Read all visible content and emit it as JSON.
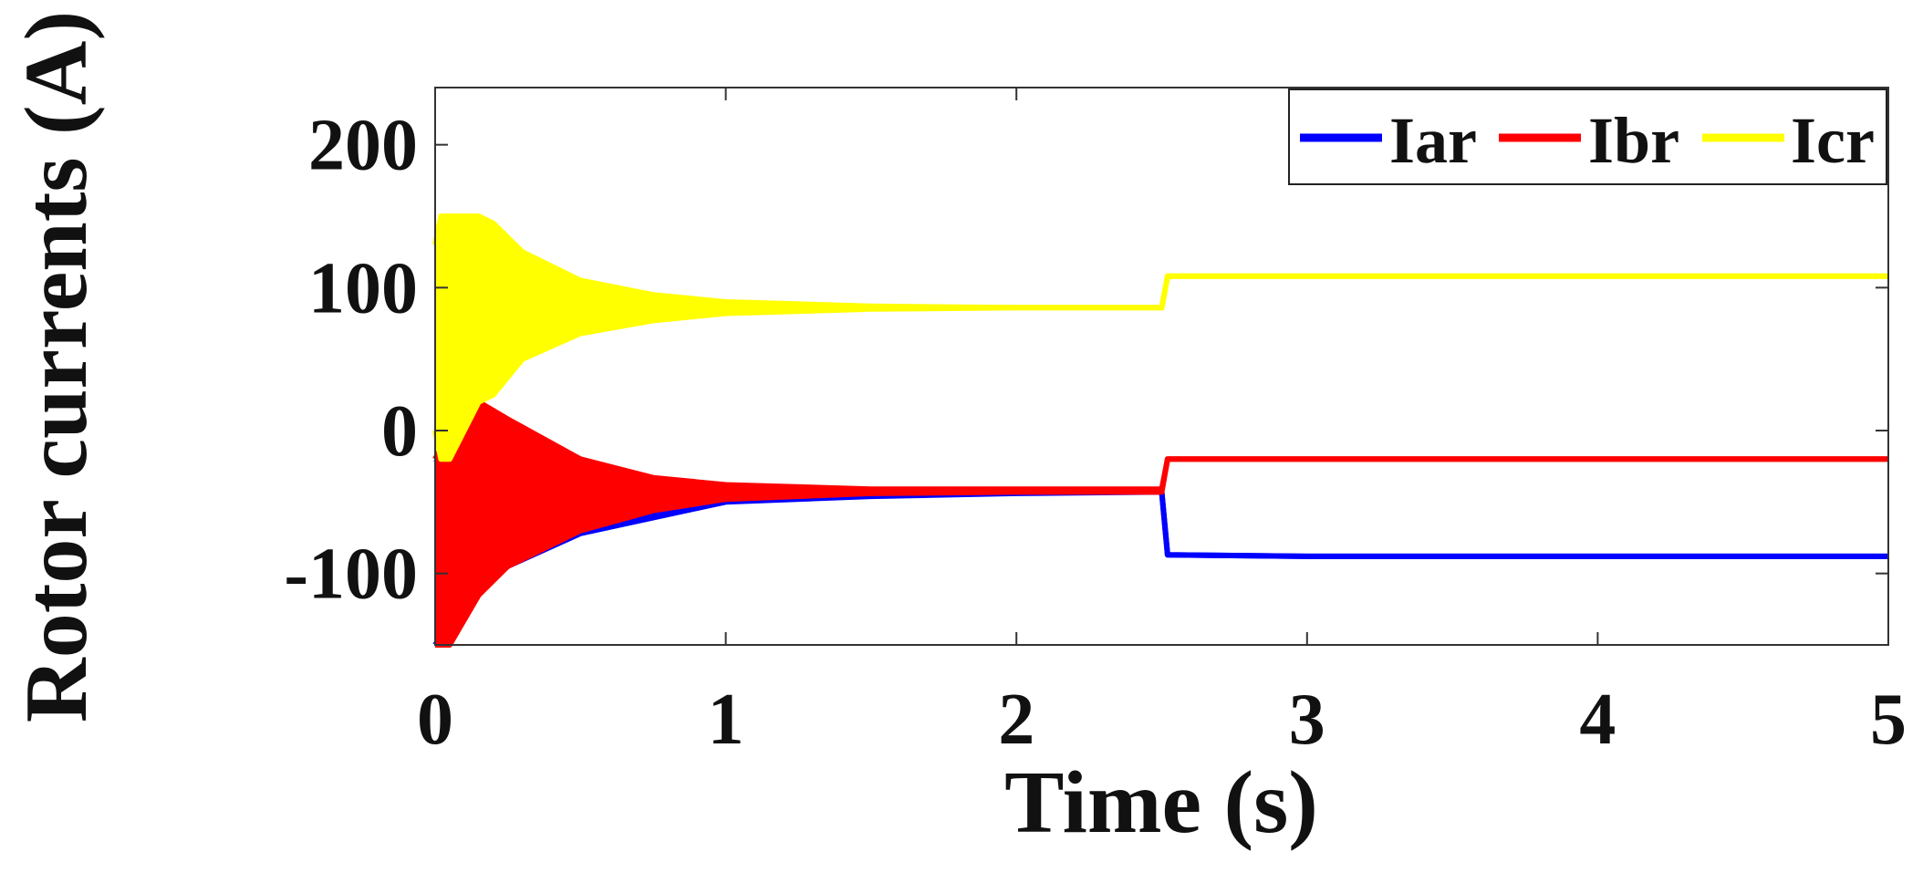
{
  "chart_data": {
    "type": "line",
    "title": "",
    "xlabel": "Time (s)",
    "ylabel": "Rotor currents (A)",
    "xlim": [
      0,
      5
    ],
    "ylim": [
      -150,
      240
    ],
    "xticks": [
      0,
      1,
      2,
      3,
      4,
      5
    ],
    "yticks": [
      -100,
      0,
      100,
      200
    ],
    "xtick_labels": [
      "0",
      "1",
      "2",
      "3",
      "4",
      "5"
    ],
    "ytick_labels": [
      "-100",
      "0",
      "100",
      "200"
    ],
    "grid": false,
    "legend_position": "top-right",
    "legend": [
      "Iar",
      "Ibr",
      "Icr"
    ],
    "series": [
      {
        "name": "Iar",
        "color": "#0000ff",
        "style": "steady-state envelope",
        "x": [
          0,
          0.1,
          0.25,
          0.5,
          1.0,
          1.5,
          2.0,
          2.49,
          2.5,
          2.52,
          3.0,
          4.0,
          5.0
        ],
        "upper": [
          -20,
          -35,
          -40,
          -42,
          -43,
          -43,
          -43,
          -43,
          -43,
          -87,
          -88,
          -88,
          -88
        ],
        "lower": [
          -150,
          -120,
          -95,
          -72,
          -50,
          -46,
          -44,
          -43,
          -43,
          -87,
          -88,
          -88,
          -88
        ]
      },
      {
        "name": "Ibr",
        "color": "#ff0000",
        "style": "oscillating envelope",
        "x": [
          0,
          0.05,
          0.15,
          0.25,
          0.5,
          0.75,
          1.0,
          1.5,
          2.0,
          2.49,
          2.5,
          2.52,
          3.0,
          4.0,
          5.0
        ],
        "upper": [
          -20,
          0,
          20,
          8,
          -20,
          -33,
          -38,
          -41,
          -41,
          -41,
          -41,
          -20,
          -20,
          -20,
          -20
        ],
        "lower": [
          -150,
          -150,
          -115,
          -95,
          -70,
          -56,
          -48,
          -44,
          -43,
          -43,
          -43,
          -20,
          -20,
          -20,
          -20
        ]
      },
      {
        "name": "Icr",
        "color": "#ffff00",
        "style": "oscillating envelope",
        "x": [
          0,
          0.02,
          0.05,
          0.15,
          0.2,
          0.3,
          0.5,
          0.75,
          1.0,
          1.5,
          2.0,
          2.49,
          2.5,
          2.52,
          3.0,
          4.0,
          5.0
        ],
        "upper": [
          130,
          150,
          150,
          150,
          145,
          125,
          105,
          95,
          90,
          87,
          86,
          86,
          86,
          108,
          108,
          108,
          108
        ],
        "lower": [
          0,
          -20,
          -20,
          20,
          25,
          50,
          68,
          77,
          82,
          85,
          86,
          86,
          86,
          108,
          108,
          108,
          108
        ]
      }
    ]
  }
}
